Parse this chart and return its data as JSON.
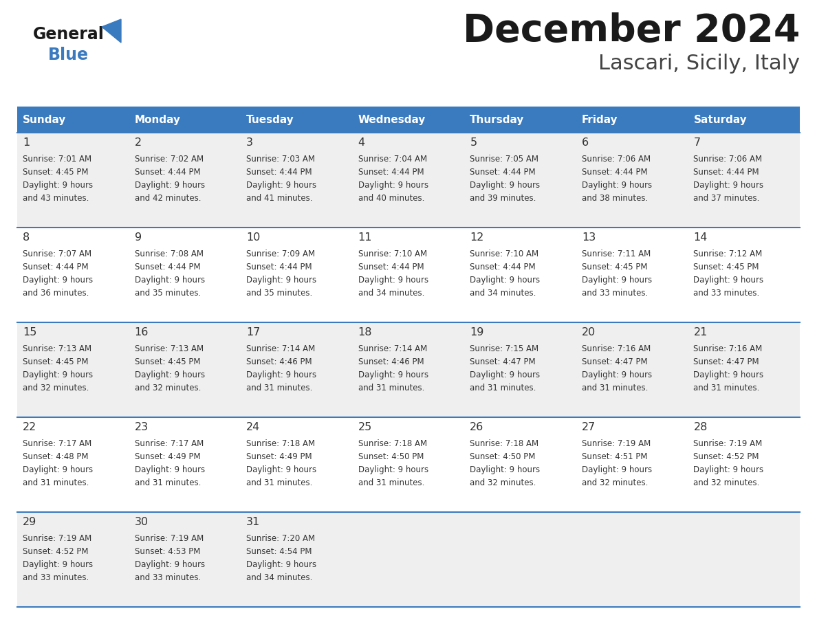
{
  "title": "December 2024",
  "subtitle": "Lascari, Sicily, Italy",
  "header_color": "#3a7abf",
  "header_text_color": "#ffffff",
  "days_of_week": [
    "Sunday",
    "Monday",
    "Tuesday",
    "Wednesday",
    "Thursday",
    "Friday",
    "Saturday"
  ],
  "background_color": "#ffffff",
  "cell_bg_even": "#efefef",
  "cell_bg_odd": "#ffffff",
  "divider_color": "#3a7abf",
  "text_color": "#333333",
  "calendar": [
    [
      {
        "day": 1,
        "sunrise": "7:01 AM",
        "sunset": "4:45 PM",
        "daylight_min": "43 minutes."
      },
      {
        "day": 2,
        "sunrise": "7:02 AM",
        "sunset": "4:44 PM",
        "daylight_min": "42 minutes."
      },
      {
        "day": 3,
        "sunrise": "7:03 AM",
        "sunset": "4:44 PM",
        "daylight_min": "41 minutes."
      },
      {
        "day": 4,
        "sunrise": "7:04 AM",
        "sunset": "4:44 PM",
        "daylight_min": "40 minutes."
      },
      {
        "day": 5,
        "sunrise": "7:05 AM",
        "sunset": "4:44 PM",
        "daylight_min": "39 minutes."
      },
      {
        "day": 6,
        "sunrise": "7:06 AM",
        "sunset": "4:44 PM",
        "daylight_min": "38 minutes."
      },
      {
        "day": 7,
        "sunrise": "7:06 AM",
        "sunset": "4:44 PM",
        "daylight_min": "37 minutes."
      }
    ],
    [
      {
        "day": 8,
        "sunrise": "7:07 AM",
        "sunset": "4:44 PM",
        "daylight_min": "36 minutes."
      },
      {
        "day": 9,
        "sunrise": "7:08 AM",
        "sunset": "4:44 PM",
        "daylight_min": "35 minutes."
      },
      {
        "day": 10,
        "sunrise": "7:09 AM",
        "sunset": "4:44 PM",
        "daylight_min": "35 minutes."
      },
      {
        "day": 11,
        "sunrise": "7:10 AM",
        "sunset": "4:44 PM",
        "daylight_min": "34 minutes."
      },
      {
        "day": 12,
        "sunrise": "7:10 AM",
        "sunset": "4:44 PM",
        "daylight_min": "34 minutes."
      },
      {
        "day": 13,
        "sunrise": "7:11 AM",
        "sunset": "4:45 PM",
        "daylight_min": "33 minutes."
      },
      {
        "day": 14,
        "sunrise": "7:12 AM",
        "sunset": "4:45 PM",
        "daylight_min": "33 minutes."
      }
    ],
    [
      {
        "day": 15,
        "sunrise": "7:13 AM",
        "sunset": "4:45 PM",
        "daylight_min": "32 minutes."
      },
      {
        "day": 16,
        "sunrise": "7:13 AM",
        "sunset": "4:45 PM",
        "daylight_min": "32 minutes."
      },
      {
        "day": 17,
        "sunrise": "7:14 AM",
        "sunset": "4:46 PM",
        "daylight_min": "31 minutes."
      },
      {
        "day": 18,
        "sunrise": "7:14 AM",
        "sunset": "4:46 PM",
        "daylight_min": "31 minutes."
      },
      {
        "day": 19,
        "sunrise": "7:15 AM",
        "sunset": "4:47 PM",
        "daylight_min": "31 minutes."
      },
      {
        "day": 20,
        "sunrise": "7:16 AM",
        "sunset": "4:47 PM",
        "daylight_min": "31 minutes."
      },
      {
        "day": 21,
        "sunrise": "7:16 AM",
        "sunset": "4:47 PM",
        "daylight_min": "31 minutes."
      }
    ],
    [
      {
        "day": 22,
        "sunrise": "7:17 AM",
        "sunset": "4:48 PM",
        "daylight_min": "31 minutes."
      },
      {
        "day": 23,
        "sunrise": "7:17 AM",
        "sunset": "4:49 PM",
        "daylight_min": "31 minutes."
      },
      {
        "day": 24,
        "sunrise": "7:18 AM",
        "sunset": "4:49 PM",
        "daylight_min": "31 minutes."
      },
      {
        "day": 25,
        "sunrise": "7:18 AM",
        "sunset": "4:50 PM",
        "daylight_min": "31 minutes."
      },
      {
        "day": 26,
        "sunrise": "7:18 AM",
        "sunset": "4:50 PM",
        "daylight_min": "32 minutes."
      },
      {
        "day": 27,
        "sunrise": "7:19 AM",
        "sunset": "4:51 PM",
        "daylight_min": "32 minutes."
      },
      {
        "day": 28,
        "sunrise": "7:19 AM",
        "sunset": "4:52 PM",
        "daylight_min": "32 minutes."
      }
    ],
    [
      {
        "day": 29,
        "sunrise": "7:19 AM",
        "sunset": "4:52 PM",
        "daylight_min": "33 minutes."
      },
      {
        "day": 30,
        "sunrise": "7:19 AM",
        "sunset": "4:53 PM",
        "daylight_min": "33 minutes."
      },
      {
        "day": 31,
        "sunrise": "7:20 AM",
        "sunset": "4:54 PM",
        "daylight_min": "34 minutes."
      },
      null,
      null,
      null,
      null
    ]
  ]
}
